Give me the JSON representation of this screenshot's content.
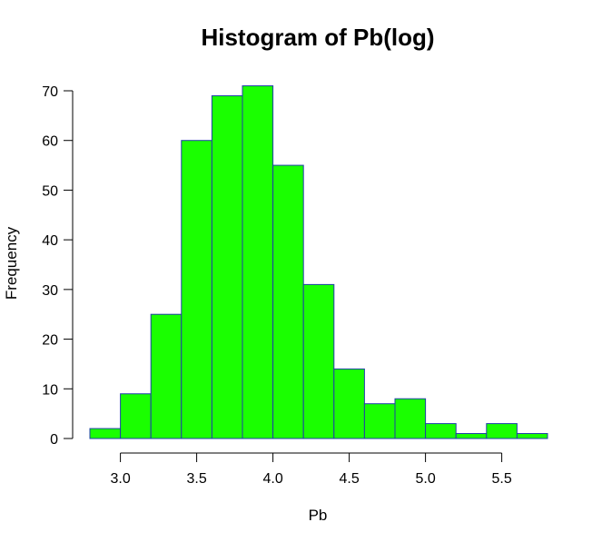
{
  "chart_data": {
    "type": "bar",
    "title": "Histogram of Pb(log)",
    "xlabel": "Pb",
    "ylabel": "Frequency",
    "bins": [
      {
        "x0": 2.8,
        "x1": 3.0,
        "count": 2
      },
      {
        "x0": 3.0,
        "x1": 3.2,
        "count": 9
      },
      {
        "x0": 3.2,
        "x1": 3.4,
        "count": 25
      },
      {
        "x0": 3.4,
        "x1": 3.6,
        "count": 60
      },
      {
        "x0": 3.6,
        "x1": 3.8,
        "count": 69
      },
      {
        "x0": 3.8,
        "x1": 4.0,
        "count": 71
      },
      {
        "x0": 4.0,
        "x1": 4.2,
        "count": 55
      },
      {
        "x0": 4.2,
        "x1": 4.4,
        "count": 31
      },
      {
        "x0": 4.4,
        "x1": 4.6,
        "count": 14
      },
      {
        "x0": 4.6,
        "x1": 4.8,
        "count": 7
      },
      {
        "x0": 4.8,
        "x1": 5.0,
        "count": 8
      },
      {
        "x0": 5.0,
        "x1": 5.2,
        "count": 3
      },
      {
        "x0": 5.2,
        "x1": 5.4,
        "count": 1
      },
      {
        "x0": 5.4,
        "x1": 5.6,
        "count": 3
      },
      {
        "x0": 5.6,
        "x1": 5.8,
        "count": 1
      }
    ],
    "xticks": [
      "3.0",
      "3.5",
      "4.0",
      "4.5",
      "5.0",
      "5.5"
    ],
    "yticks": [
      "0",
      "10",
      "20",
      "30",
      "40",
      "50",
      "60",
      "70"
    ],
    "xlim": [
      2.8,
      5.8
    ],
    "ylim": [
      0,
      70
    ],
    "bar_fill": "#1aff00",
    "bar_stroke": "#1f3fa8",
    "grid": false
  }
}
